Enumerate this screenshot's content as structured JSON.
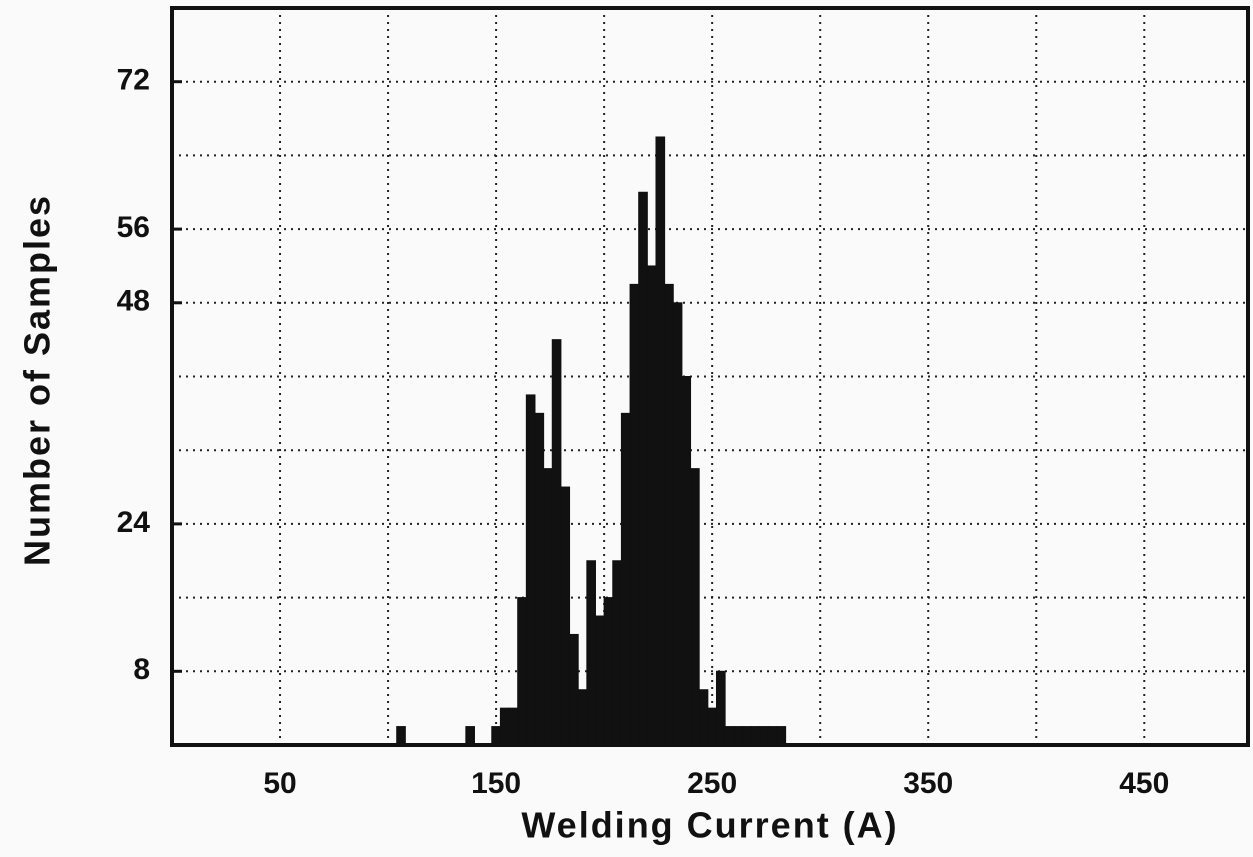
{
  "chart_data": {
    "type": "histogram",
    "x_label": "Welding Current (A)",
    "y_label": "Number of Samples",
    "bins": [
      100,
      104,
      108,
      112,
      116,
      120,
      124,
      128,
      132,
      136,
      140,
      144,
      148,
      152,
      156,
      160,
      164,
      168,
      172,
      176,
      180,
      184,
      188,
      192,
      196,
      200,
      204,
      208,
      212,
      216,
      220,
      224,
      228,
      232,
      236,
      240,
      244,
      248,
      252,
      256,
      260,
      264,
      268,
      272,
      276,
      280,
      284,
      288
    ],
    "values": [
      0,
      2,
      0,
      0,
      0,
      0,
      0,
      0,
      0,
      2,
      0,
      0,
      2,
      4,
      4,
      16,
      38,
      36,
      30,
      44,
      28,
      12,
      6,
      20,
      14,
      16,
      20,
      36,
      50,
      60,
      52,
      66,
      50,
      48,
      40,
      30,
      6,
      4,
      8,
      2,
      2,
      2,
      2,
      2,
      2,
      2,
      0
    ],
    "color": "#111111",
    "xlim": [
      0,
      498
    ],
    "ylim": [
      0,
      80
    ],
    "xticks": [
      50,
      150,
      250,
      350,
      450
    ],
    "xgrid": [
      50,
      100,
      150,
      200,
      250,
      300,
      350,
      400,
      450
    ],
    "yticks": [
      8,
      24,
      48,
      56,
      72
    ],
    "ygrid": [
      8,
      16,
      24,
      32,
      40,
      48,
      56,
      64,
      72
    ],
    "grid": true
  }
}
